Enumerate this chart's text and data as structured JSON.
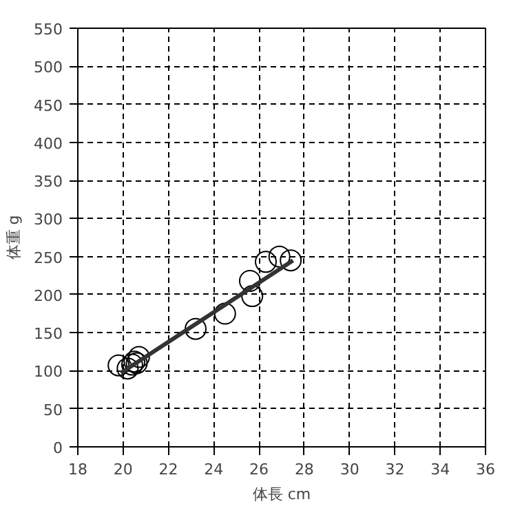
{
  "chart_data": {
    "type": "scatter",
    "xlabel": "体長 cm",
    "ylabel": "体重 g",
    "xlim": [
      18,
      36
    ],
    "ylim": [
      0,
      550
    ],
    "xticks": [
      18,
      20,
      22,
      24,
      26,
      28,
      30,
      32,
      34,
      36
    ],
    "yticks": [
      0,
      50,
      100,
      150,
      200,
      250,
      300,
      350,
      400,
      450,
      500,
      550
    ],
    "grid": true,
    "marker": "circle",
    "series": [
      {
        "color": "#000000",
        "x": [
          19.8,
          20.2,
          20.4,
          20.5,
          20.6,
          20.7,
          23.2,
          24.5,
          25.6,
          25.7,
          26.3,
          26.9,
          27.4
        ],
        "values": [
          107,
          103,
          108,
          112,
          110,
          118,
          155,
          175,
          218,
          198,
          243,
          250,
          245
        ]
      },
      {
        "type": "line",
        "color": "#333333",
        "x": [
          19.9,
          27.5
        ],
        "values": [
          97,
          245
        ],
        "marker": "none",
        "line_style": "solid"
      }
    ]
  }
}
